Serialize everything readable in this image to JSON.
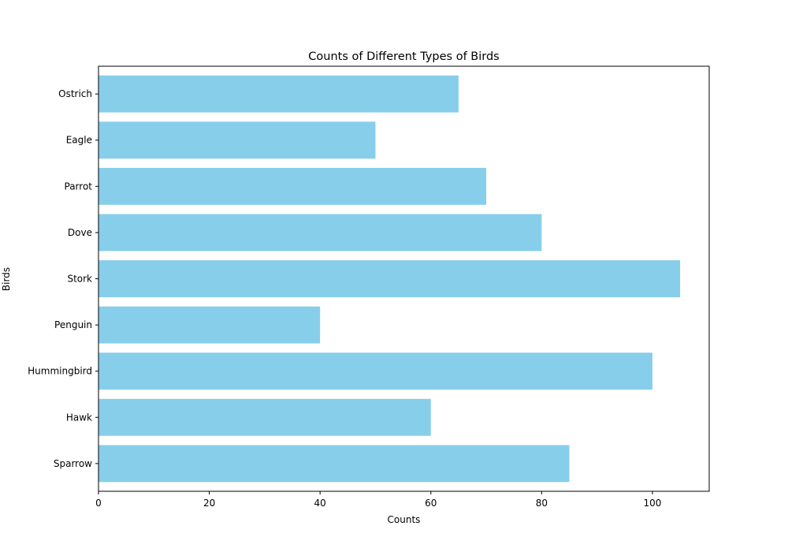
{
  "chart_data": {
    "type": "bar",
    "orientation": "horizontal",
    "title": "Counts of Different Types of Birds",
    "xlabel": "Counts",
    "ylabel": "Birds",
    "categories": [
      "Sparrow",
      "Hawk",
      "Hummingbird",
      "Penguin",
      "Stork",
      "Dove",
      "Parrot",
      "Eagle",
      "Ostrich"
    ],
    "values": [
      85,
      60,
      100,
      40,
      105,
      80,
      70,
      50,
      65
    ],
    "xlim": [
      0,
      110.25
    ],
    "xticks": [
      0,
      20,
      40,
      60,
      80,
      100
    ],
    "bar_color": "#87ceeb",
    "grid": false,
    "legend": "none"
  }
}
